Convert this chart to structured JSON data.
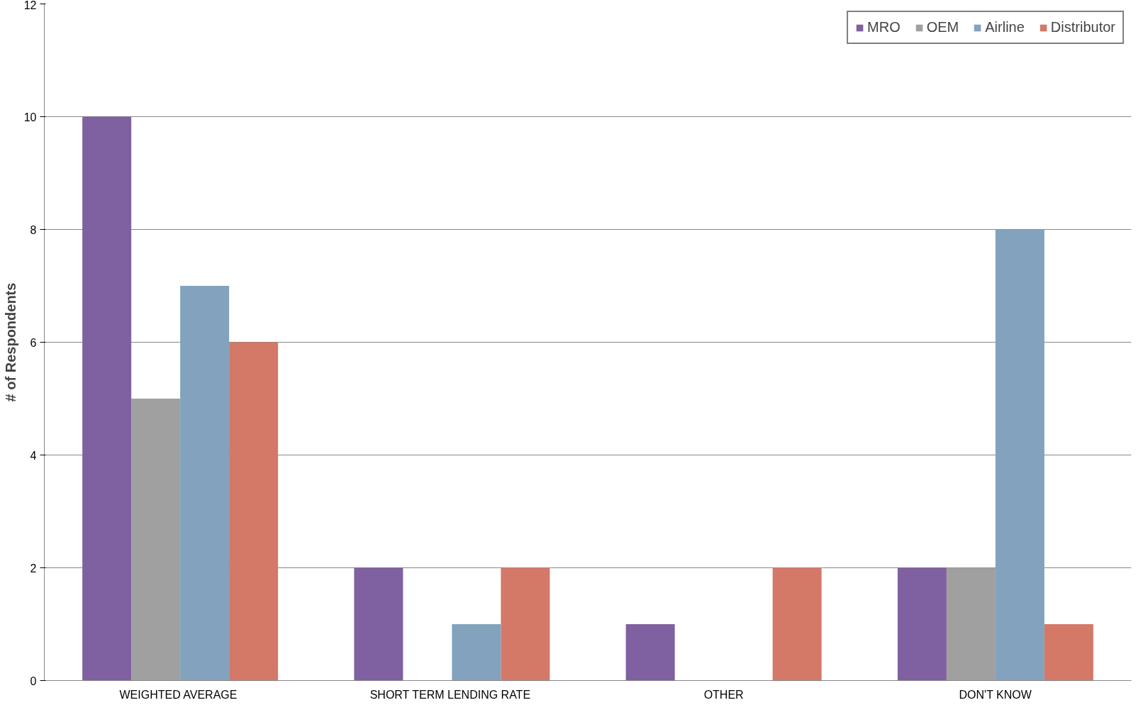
{
  "chart_data": {
    "type": "bar",
    "ylabel": "# of Respondents",
    "categories": [
      "WEIGHTED  AVERAGE",
      "SHORT TERM  LENDING RATE",
      "OTHER",
      "DON'T KNOW"
    ],
    "series": [
      {
        "name": "MRO",
        "color": "#7f60a0",
        "values": [
          10,
          2,
          1,
          2
        ]
      },
      {
        "name": "OEM",
        "color": "#a0a0a0",
        "values": [
          5,
          0,
          0,
          2
        ]
      },
      {
        "name": "Airline",
        "color": "#82a2bd",
        "values": [
          7,
          1,
          0,
          8
        ]
      },
      {
        "name": "Distributor",
        "color": "#d47868",
        "values": [
          6,
          2,
          2,
          1
        ]
      }
    ],
    "ylim": [
      0,
      12
    ],
    "yticks": [
      0,
      2,
      4,
      6,
      8,
      10,
      12
    ],
    "grid": "y",
    "legend": "top right"
  }
}
